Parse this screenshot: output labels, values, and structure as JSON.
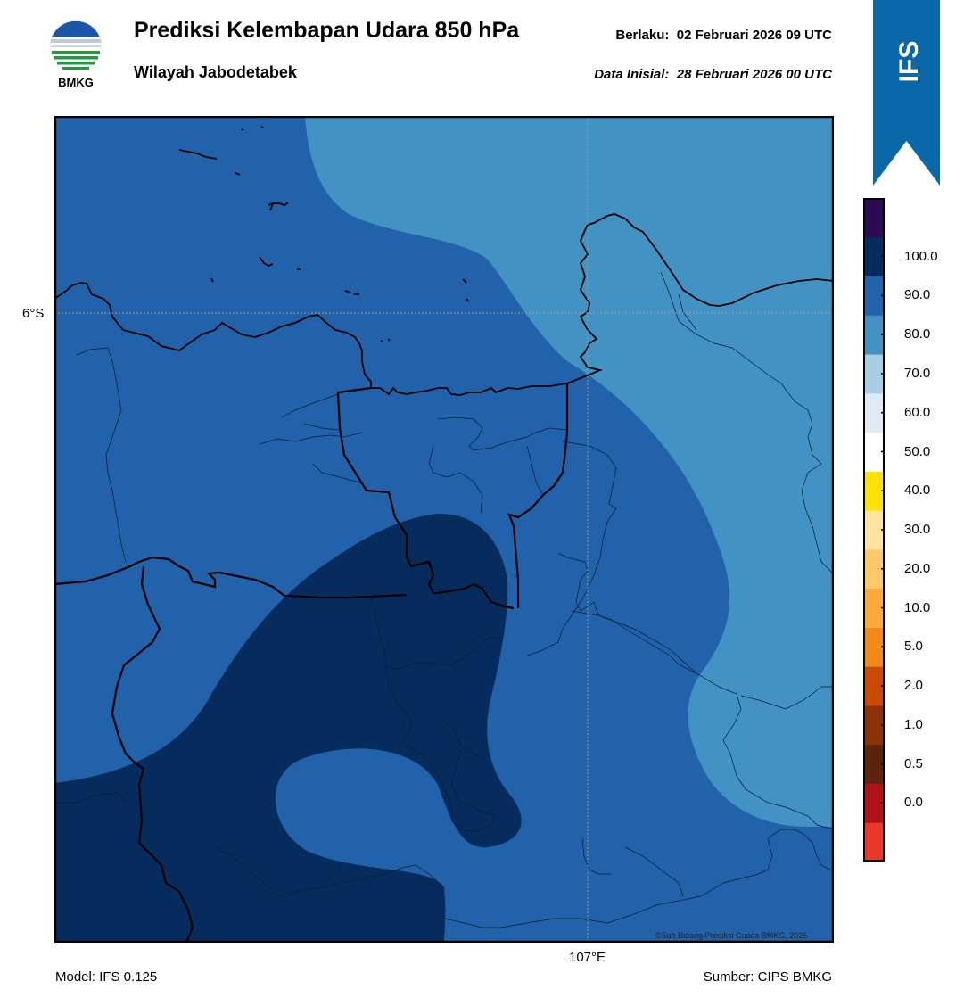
{
  "header": {
    "logo_text": "BMKG",
    "title": "Prediksi Kelembapan Udara 850 hPa",
    "subtitle": "Wilayah Jabodetabek",
    "valid_label": "Berlaku:",
    "valid_date": "02 Februari 2026 09 UTC",
    "initial_label": "Data Inisial:",
    "initial_date": "28 Februari 2026 00 UTC"
  },
  "badge": {
    "text": "IFS",
    "color": "#0a67a8"
  },
  "map": {
    "lat_label": "6°S",
    "lon_label": "107°E",
    "credit": "©Sub Bidang Prediksi Cuaca BMKG, 2026",
    "field_colors": {
      "80-90": "#2262ab",
      "70-80": "#4292c3",
      "90-100": "#062c5e"
    }
  },
  "colorbar": {
    "bands": [
      {
        "color": "#e8382a"
      },
      {
        "color": "#b01218"
      },
      {
        "color": "#5c240c"
      },
      {
        "color": "#8c3208"
      },
      {
        "color": "#c84a04"
      },
      {
        "color": "#f08a1a"
      },
      {
        "color": "#fba83c"
      },
      {
        "color": "#fec96a"
      },
      {
        "color": "#fee49e"
      },
      {
        "color": "#ffe200"
      },
      {
        "color": "#ffffff"
      },
      {
        "color": "#deebf6"
      },
      {
        "color": "#a7cee3"
      },
      {
        "color": "#4292c3"
      },
      {
        "color": "#2262ab"
      },
      {
        "color": "#062c5e"
      },
      {
        "color": "#2c0b56"
      }
    ],
    "labels": [
      "0.0",
      "0.5",
      "1.0",
      "2.0",
      "5.0",
      "10.0",
      "20.0",
      "30.0",
      "40.0",
      "50.0",
      "60.0",
      "70.0",
      "80.0",
      "90.0",
      "100.0"
    ]
  },
  "footer": {
    "model": "Model: IFS 0.125",
    "source": "Sumber: CIPS BMKG"
  }
}
